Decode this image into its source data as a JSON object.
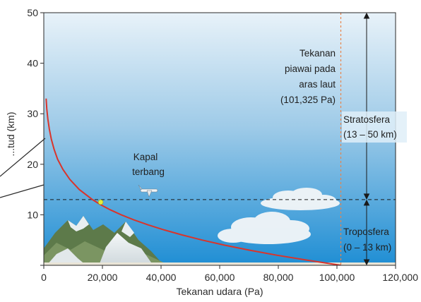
{
  "chart_data": {
    "type": "line",
    "xlabel": "Tekanan udara (Pa)",
    "ylabel": "...tud (km)",
    "xlim": [
      0,
      120000
    ],
    "ylim": [
      0,
      50
    ],
    "x_ticks": [
      {
        "value": 0,
        "label": "0"
      },
      {
        "value": 20000,
        "label": "20,000"
      },
      {
        "value": 40000,
        "label": "40,000"
      },
      {
        "value": 60000,
        "label": "60,000"
      },
      {
        "value": 80000,
        "label": "80,000"
      },
      {
        "value": 100000,
        "label": "100,000"
      },
      {
        "value": 120000,
        "label": "120,000"
      }
    ],
    "y_ticks": [
      {
        "value": 0,
        "label": ""
      },
      {
        "value": 10,
        "label": "10"
      },
      {
        "value": 20,
        "label": "20"
      },
      {
        "value": 30,
        "label": "30"
      },
      {
        "value": 40,
        "label": "40"
      },
      {
        "value": 50,
        "label": "50"
      }
    ],
    "series": [
      {
        "color": "#d9342b",
        "x": [
          101325,
          89900,
          79500,
          70100,
          61600,
          54000,
          47200,
          41100,
          35600,
          30700,
          26400,
          22600,
          19400,
          16600,
          12100,
          8900,
          6500,
          4700,
          3500,
          2550,
          1870,
          1370,
          1000,
          800
        ],
        "y": [
          0,
          1,
          2,
          3,
          4,
          5,
          6,
          7,
          8,
          9,
          10,
          11,
          12,
          13,
          15,
          17,
          19,
          21,
          23,
          25,
          27,
          29,
          31,
          33
        ]
      }
    ],
    "reference_lines": {
      "sea_level_pressure": 101325,
      "tropopause_height": 13
    },
    "point": {
      "x": 19400,
      "y": 12.5,
      "color": "#e4ee3c"
    },
    "annotations": {
      "sea_level": [
        "Tekanan",
        "piawai pada",
        "aras laut",
        "(101,325 Pa)"
      ],
      "aircraft": [
        "Kapal",
        "terbang"
      ],
      "stratosphere": [
        "Stratosfera",
        "(13 – 50 km)"
      ],
      "troposphere": [
        "Troposfera",
        "(0 – 13 km)"
      ]
    },
    "grid": false,
    "legend": "none"
  },
  "colors": {
    "sky_top": "#e8f2f9",
    "sky_mid": "#9fcbe8",
    "sky_bottom": "#1f8ed4",
    "curve": "#d9342b",
    "reference": "#e8834a",
    "axis": "#2a2a2a"
  }
}
